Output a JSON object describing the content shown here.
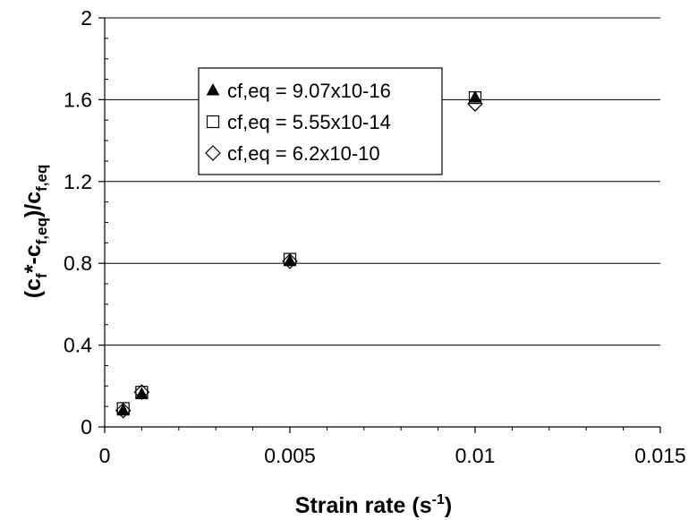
{
  "chart_data": {
    "type": "scatter",
    "title": "",
    "xlabel": {
      "main": "Strain rate (s",
      "sup": "-1",
      "tail": ")"
    },
    "ylabel": {
      "parts": [
        {
          "t": "(c",
          "s": "normal"
        },
        {
          "t": "f",
          "s": "sub"
        },
        {
          "t": "*-c",
          "s": "normal"
        },
        {
          "t": "f,eq",
          "s": "sub"
        },
        {
          "t": ")/c",
          "s": "normal"
        },
        {
          "t": "f,eq",
          "s": "sub"
        }
      ]
    },
    "xlim": [
      0,
      0.015
    ],
    "ylim": [
      0,
      2
    ],
    "x_ticks": [
      0,
      0.005,
      0.01,
      0.015
    ],
    "x_tick_labels": [
      "0",
      "0.005",
      "0.01",
      "0.015"
    ],
    "y_ticks": [
      0,
      0.4,
      0.8,
      1.2,
      1.6,
      2
    ],
    "y_tick_labels": [
      "0",
      "0.4",
      "0.8",
      "1.2",
      "1.6",
      "2"
    ],
    "grid": "horizontal",
    "legend_position": "top-left",
    "series": [
      {
        "name": "cf,eq = 9.07x10-16",
        "marker": "triangle-filled",
        "x": [
          0.0005,
          0.001,
          0.005,
          0.01
        ],
        "y": [
          0.08,
          0.16,
          0.81,
          1.61
        ]
      },
      {
        "name": "cf,eq = 5.55x10-14",
        "marker": "square-open",
        "x": [
          0.0005,
          0.001,
          0.005,
          0.01
        ],
        "y": [
          0.09,
          0.17,
          0.82,
          1.61
        ]
      },
      {
        "name": "cf,eq = 6.2x10-10",
        "marker": "diamond-open",
        "x": [
          0.0005,
          0.001,
          0.005,
          0.01
        ],
        "y": [
          0.08,
          0.17,
          0.81,
          1.58
        ]
      }
    ]
  }
}
